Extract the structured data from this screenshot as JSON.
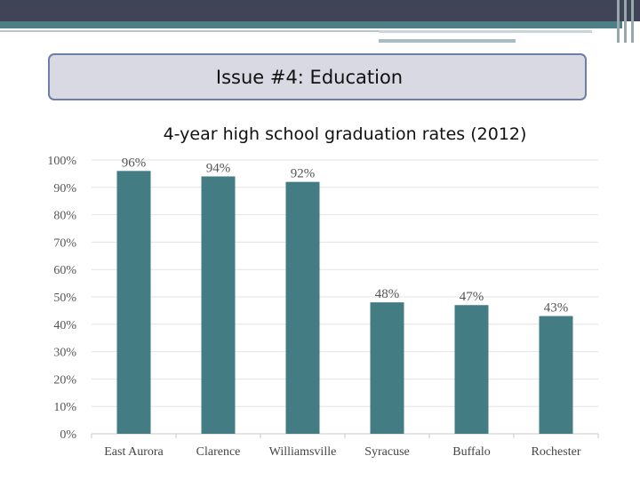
{
  "slide": {
    "heading": "Issue #4: Education"
  },
  "chart_data": {
    "type": "bar",
    "title": "4-year high school graduation rates (2012)",
    "categories": [
      "East Aurora",
      "Clarence",
      "Williamsville",
      "Syracuse",
      "Buffalo",
      "Rochester"
    ],
    "values": [
      96,
      94,
      92,
      48,
      47,
      43
    ],
    "data_labels": [
      "96%",
      "94%",
      "92%",
      "48%",
      "47%",
      "43%"
    ],
    "ylim": [
      0,
      100
    ],
    "yticks": [
      0,
      10,
      20,
      30,
      40,
      50,
      60,
      70,
      80,
      90,
      100
    ],
    "ytick_labels": [
      "0%",
      "10%",
      "20%",
      "30%",
      "40%",
      "50%",
      "60%",
      "70%",
      "80%",
      "90%",
      "100%"
    ],
    "grid": true,
    "colors": {
      "bar": "#437c82",
      "grid": "#e3e3e3",
      "axis": "#c8c8c8"
    }
  }
}
